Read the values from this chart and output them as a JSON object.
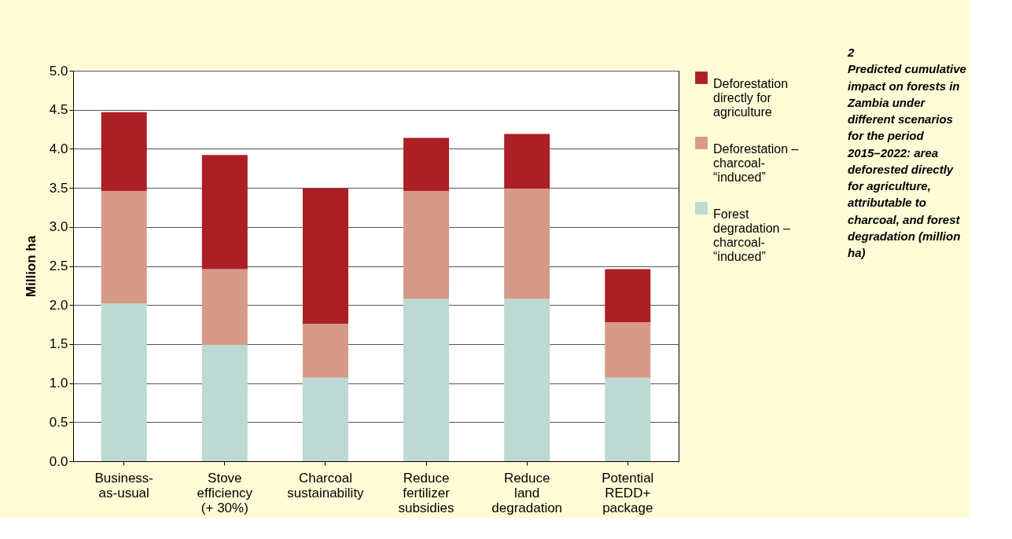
{
  "chart_data": {
    "type": "bar",
    "title": "2",
    "subtitle": "Predicted cumulative impact on forests in Zambia under different scenarios for the period 2015–2022: area deforested directly for agriculture, attributable to charcoal, and forest degradation (million ha)",
    "ylabel": "Million ha",
    "categories": [
      "Business-\nas-usual",
      "Stove\nefficiency\n(+ 30%)",
      "Charcoal\nsustainability",
      "Reduce\nfertilizer\nsubsidies",
      "Reduce\nland\ndegradation",
      "Potential\nREDD+\npackage"
    ],
    "stacked": true,
    "series": [
      {
        "name": "Forest\ndegradation –\ncharcoal-\n“induced”",
        "color": "#bcd9d4",
        "values": [
          2.02,
          1.49,
          1.07,
          2.08,
          2.08,
          1.07
        ]
      },
      {
        "name": "Deforestation –\ncharcoal-\n“induced”",
        "color": "#d69a88",
        "values": [
          1.44,
          0.97,
          0.69,
          1.38,
          1.41,
          0.71
        ]
      },
      {
        "name": "Deforestation\ndirectly for\nagriculture",
        "color": "#ab1f25",
        "values": [
          1.01,
          1.46,
          1.73,
          0.68,
          0.7,
          0.68
        ]
      }
    ],
    "ylim": [
      0,
      5
    ],
    "yticks": [
      {
        "value": 0,
        "label": "0.0"
      },
      0.5,
      {
        "value": 1,
        "label": "1.0"
      },
      1.5,
      {
        "value": 2,
        "label": "2.0"
      },
      2.5,
      {
        "value": 3,
        "label": "3.0"
      },
      3.5,
      {
        "value": 4,
        "label": "4.0"
      },
      4.5,
      {
        "value": 5,
        "label": "5.0"
      }
    ],
    "grid": "y",
    "legend": "right"
  }
}
